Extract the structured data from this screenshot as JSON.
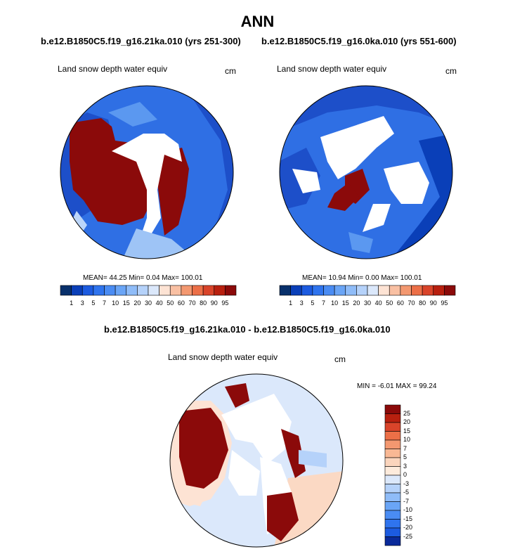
{
  "title": "ANN",
  "panels": [
    {
      "subtitle": "b.e12.B1850C5.f19_g16.21ka.010 (yrs 251-300)",
      "variable": "Land snow depth water equiv",
      "units": "cm",
      "stats": "MEAN=  44.25  Min=   0.04  Max= 100.01"
    },
    {
      "subtitle": "b.e12.B1850C5.f19_g16.0ka.010 (yrs 551-600)",
      "variable": "Land snow depth water equiv",
      "units": "cm",
      "stats": "MEAN=  10.94  Min=   0.00  Max= 100.01"
    }
  ],
  "diff_panel": {
    "subtitle": "b.e12.B1850C5.f19_g16.21ka.010 - b.e12.B1850C5.f19_g16.0ka.010",
    "variable": "Land snow depth water equiv",
    "units": "cm",
    "stats": "MIN =  -6.01 MAX =  99.24"
  },
  "colorbar_abs": {
    "labels": [
      "1",
      "3",
      "5",
      "7",
      "10",
      "15",
      "20",
      "30",
      "40",
      "50",
      "60",
      "70",
      "80",
      "90",
      "95"
    ],
    "colors": [
      "#08306b",
      "#0a3fb8",
      "#1c5be0",
      "#2f74ee",
      "#4a8cf3",
      "#6aa5f6",
      "#8fbcf8",
      "#b5d2fa",
      "#dbe8fb",
      "#fde3d4",
      "#f9c0a3",
      "#f39870",
      "#ec6f47",
      "#d9442a",
      "#b8200f",
      "#8b0a0a"
    ]
  },
  "colorbar_diff": {
    "labels": [
      "25",
      "20",
      "15",
      "10",
      "7",
      "5",
      "3",
      "0",
      "-3",
      "-5",
      "-7",
      "-10",
      "-15",
      "-20",
      "-25"
    ],
    "colors": [
      "#8b0a0a",
      "#b8200f",
      "#d9442a",
      "#ec6f47",
      "#f39870",
      "#f9b894",
      "#fbd5bd",
      "#fdebdc",
      "#dbe8fb",
      "#b5d2fa",
      "#8fbcf8",
      "#6aa5f6",
      "#4a8cf3",
      "#2f74ee",
      "#1c5be0",
      "#0a2a9a"
    ]
  }
}
